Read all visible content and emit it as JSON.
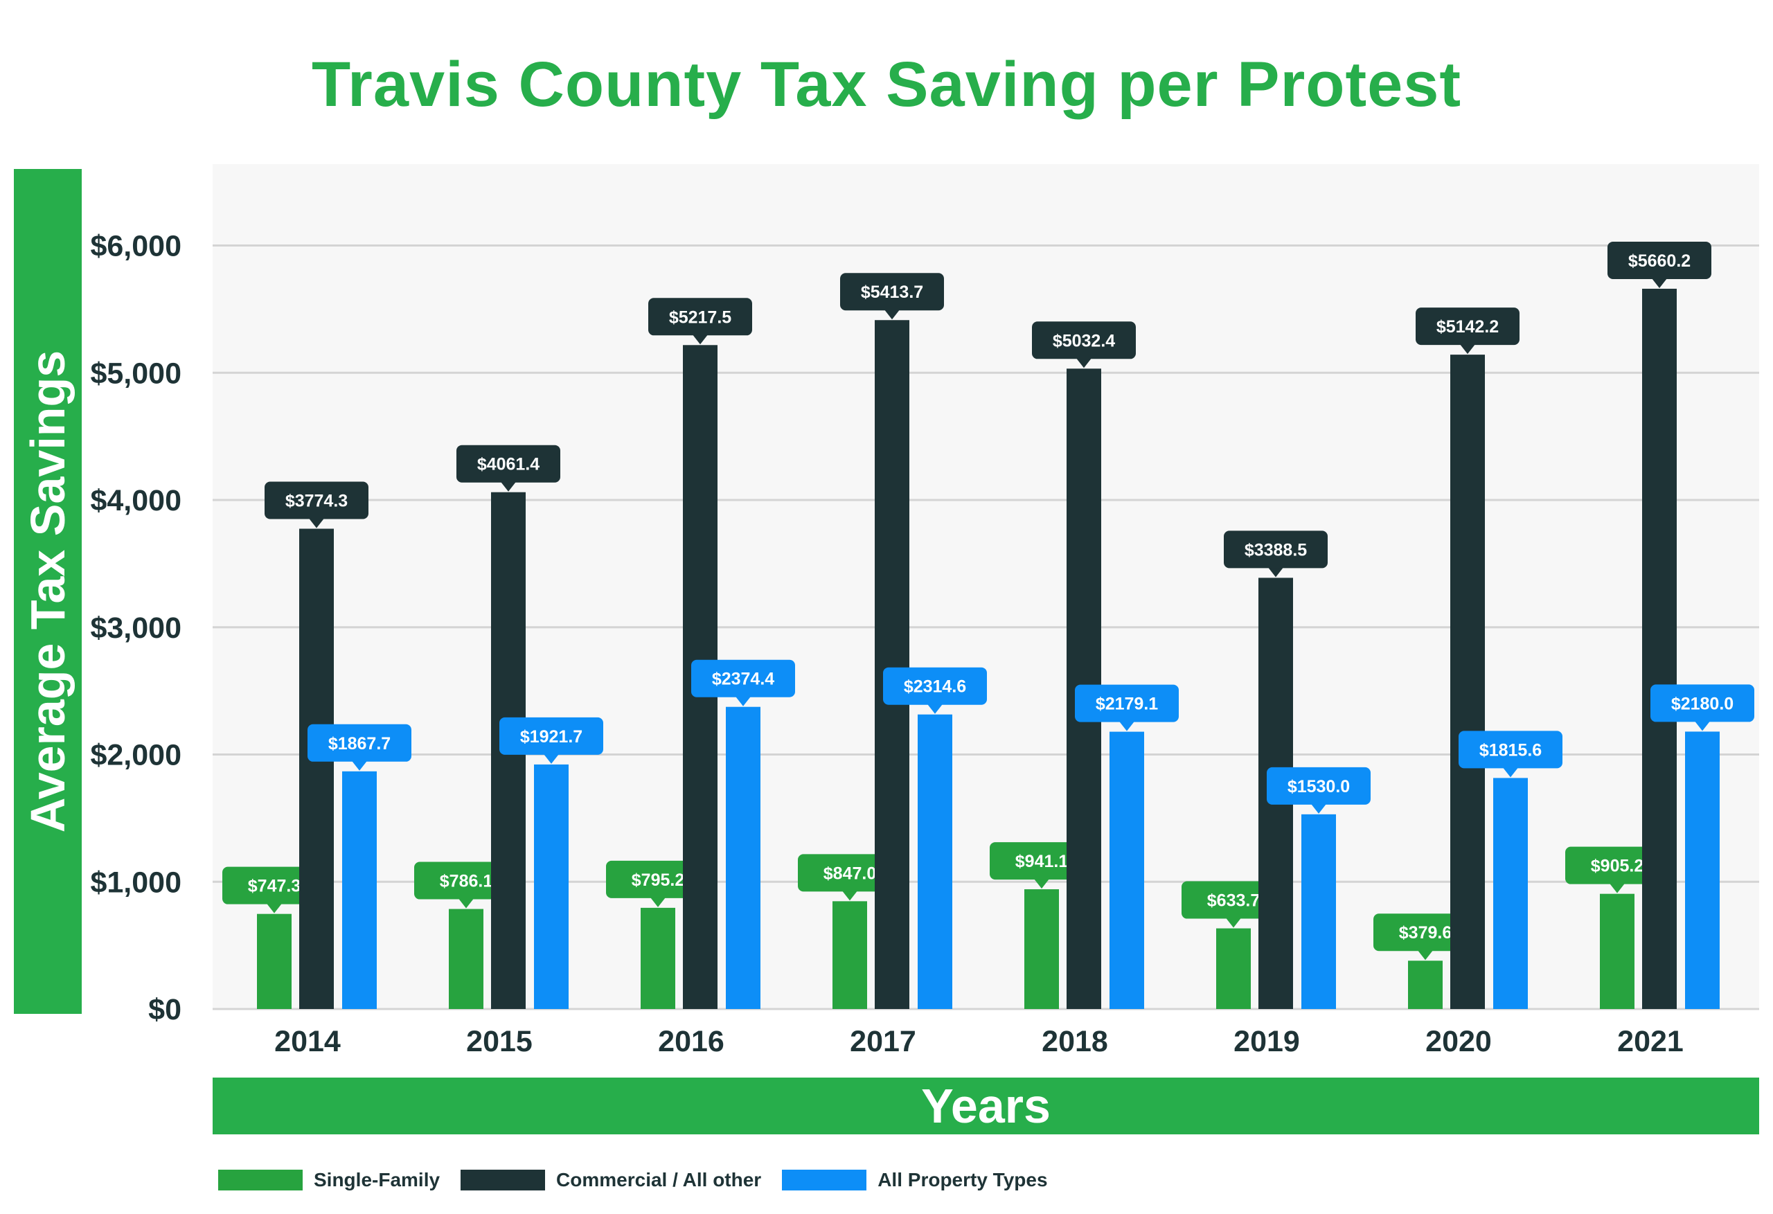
{
  "chart_data": {
    "type": "bar",
    "title": "Travis County Tax Saving per Protest",
    "xlabel": "Years",
    "ylabel": "Average Tax Savings",
    "ylim": [
      0,
      6500
    ],
    "yticks": [
      0,
      1000,
      2000,
      3000,
      4000,
      5000,
      6000
    ],
    "ytick_labels": [
      "$0",
      "$1,000",
      "$2,000",
      "$3,000",
      "$4,000",
      "$5,000",
      "$6,000"
    ],
    "grid": true,
    "legend_position": "bottom-left",
    "categories": [
      "2014",
      "2015",
      "2016",
      "2017",
      "2018",
      "2019",
      "2020",
      "2021"
    ],
    "series": [
      {
        "name": "Single-Family",
        "color": "#27a33f",
        "values": [
          747.3,
          786.1,
          795.2,
          847.0,
          941.1,
          633.7,
          379.6,
          905.2
        ],
        "labels": [
          "$747.3",
          "$786.1",
          "$795.2",
          "$847.0",
          "$941.1",
          "$633.7",
          "$379.6",
          "$905.2"
        ]
      },
      {
        "name": "Commercial / All other",
        "color": "#1e3336",
        "values": [
          3774.3,
          4061.4,
          5217.5,
          5413.7,
          5032.4,
          3388.5,
          5142.2,
          5660.2
        ],
        "labels": [
          "$3774.3",
          "$4061.4",
          "$5217.5",
          "$5413.7",
          "$5032.4",
          "$3388.5",
          "$5142.2",
          "$5660.2"
        ]
      },
      {
        "name": "All Property Types",
        "color": "#0d8ef7",
        "values": [
          1867.7,
          1921.7,
          2374.4,
          2314.6,
          2179.1,
          1530.0,
          1815.6,
          2180.0
        ],
        "labels": [
          "$1867.7",
          "$1921.7",
          "$2374.4",
          "$2314.6",
          "$2179.1",
          "$1530.0",
          "$1815.6",
          "$2180.0"
        ]
      }
    ]
  },
  "colors": {
    "title": "#27ae4b",
    "axis_band": "#27ae4b",
    "plot_background": "#f7f7f7",
    "grid": "#d4d4d4",
    "tick_text": "#1e3336"
  }
}
